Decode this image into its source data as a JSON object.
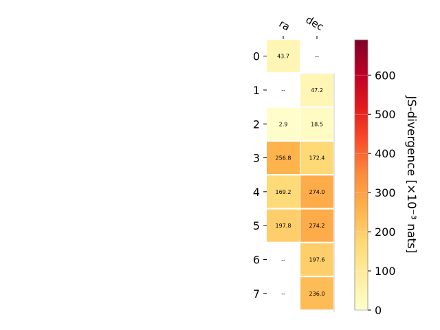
{
  "chart_data": {
    "type": "heatmap",
    "x_categories": [
      "ra",
      "dec"
    ],
    "y_categories": [
      "0",
      "1",
      "2",
      "3",
      "4",
      "5",
      "6",
      "7"
    ],
    "values": [
      [
        43.7,
        null
      ],
      [
        null,
        47.2
      ],
      [
        2.9,
        18.5
      ],
      [
        256.8,
        172.4
      ],
      [
        169.2,
        274.0
      ],
      [
        197.8,
        274.2
      ],
      [
        null,
        197.6
      ],
      [
        null,
        236.0
      ]
    ],
    "cell_labels": [
      [
        "43.7",
        "--"
      ],
      [
        "--",
        "47.2"
      ],
      [
        "2.9",
        "18.5"
      ],
      [
        "256.8",
        "172.4"
      ],
      [
        "169.2",
        "274.0"
      ],
      [
        "197.8",
        "274.2"
      ],
      [
        "--",
        "197.6"
      ],
      [
        "--",
        "236.0"
      ]
    ],
    "colorbar": {
      "label": "JS-divergence [×10⁻³ nats]",
      "range": [
        0,
        690
      ],
      "ticks": [
        "0",
        "100",
        "200",
        "300",
        "400",
        "500",
        "600"
      ],
      "tick_values": [
        0,
        100,
        200,
        300,
        400,
        500,
        600
      ],
      "colormap": "YlOrRd"
    },
    "title": "",
    "xlabel": "",
    "ylabel": ""
  }
}
